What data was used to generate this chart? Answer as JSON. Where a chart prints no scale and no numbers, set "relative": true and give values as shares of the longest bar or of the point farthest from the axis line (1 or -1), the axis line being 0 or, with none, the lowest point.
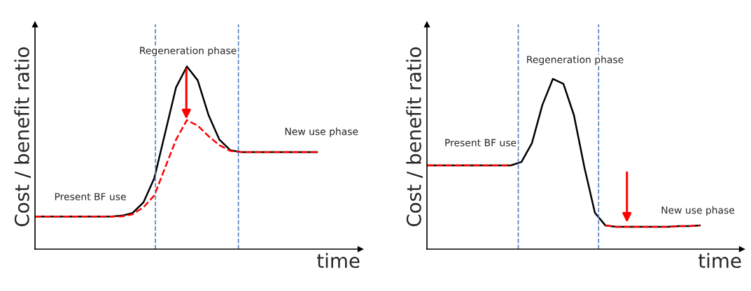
{
  "chart_data": [
    {
      "type": "line",
      "relative": true,
      "xlabel": "time",
      "ylabel": "Cost / benefit ratio",
      "categories": [
        null,
        null,
        null,
        null,
        null,
        null,
        null,
        null,
        null,
        null,
        null,
        null,
        null,
        null,
        null,
        null,
        null,
        null,
        null,
        null,
        null,
        null,
        null,
        null,
        null,
        null,
        null,
        null,
        null,
        null,
        null
      ],
      "series": [
        {
          "color": "#000000",
          "line_style": "solid",
          "values": [
            0.179,
            0.179,
            0.179,
            0.179,
            0.179,
            0.179,
            0.179,
            0.179,
            0.183,
            0.198,
            0.256,
            0.389,
            0.637,
            0.885,
            1.0,
            0.924,
            0.733,
            0.599,
            0.542,
            0.531,
            0.531,
            0.531,
            0.531,
            0.531,
            0.531,
            0.531,
            0.531,
            null,
            null,
            null,
            null
          ]
        },
        {
          "color": "#ff0000",
          "line_style": "dashed",
          "values": [
            0.179,
            0.179,
            0.179,
            0.179,
            0.179,
            0.179,
            0.179,
            0.179,
            0.179,
            0.191,
            0.229,
            0.294,
            0.447,
            0.599,
            0.706,
            0.676,
            0.618,
            0.569,
            0.538,
            0.531,
            0.531,
            0.531,
            0.531,
            0.531,
            0.531,
            0.531,
            0.531,
            null,
            null,
            null,
            null
          ]
        }
      ],
      "annotations": [
        "Regeneration phase",
        "New use phase",
        "Present BF use"
      ]
    },
    {
      "type": "line",
      "relative": true,
      "xlabel": "time",
      "ylabel": "Cost / benefit ratio",
      "categories": [
        null,
        null,
        null,
        null,
        null,
        null,
        null,
        null,
        null,
        null,
        null,
        null,
        null,
        null,
        null,
        null,
        null,
        null,
        null,
        null,
        null,
        null,
        null,
        null,
        null,
        null,
        null,
        null,
        null,
        null,
        null
      ],
      "series": [
        {
          "color": "#000000",
          "line_style": "solid",
          "values": [
            0.492,
            0.492,
            0.492,
            0.492,
            0.492,
            0.492,
            0.492,
            0.492,
            0.492,
            0.512,
            0.623,
            0.848,
            1.0,
            0.971,
            0.787,
            0.48,
            0.213,
            0.139,
            0.131,
            0.131,
            0.131,
            0.131,
            0.131,
            0.131,
            0.135,
            0.135,
            0.139,
            null,
            null,
            null,
            null
          ]
        },
        {
          "color": "#ff0000",
          "line_style": "dashed",
          "values": [
            0.492,
            0.492,
            0.492,
            0.492,
            0.492,
            0.492,
            0.492,
            0.492,
            0.492,
            null,
            null,
            null,
            null,
            null,
            null,
            null,
            null,
            0.139,
            0.131,
            0.131,
            0.131,
            0.131,
            0.131,
            0.131,
            0.135,
            0.135,
            0.139,
            null,
            null,
            null,
            null
          ]
        }
      ],
      "annotations": [
        "Regeneration phase",
        "Present BF use",
        "New use phase"
      ]
    }
  ]
}
